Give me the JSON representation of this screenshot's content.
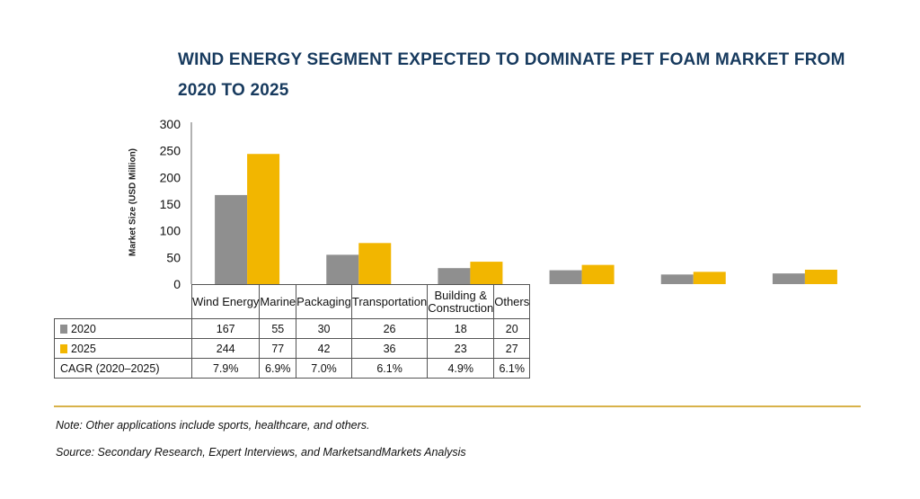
{
  "title": "WIND ENERGY SEGMENT EXPECTED TO DOMINATE PET FOAM MARKET FROM 2020 TO 2025",
  "colors": {
    "s2020": "#8f8f8f",
    "s2025": "#f2b600",
    "title": "#173a5e",
    "rule": "#d8b24a"
  },
  "chart_data": {
    "type": "bar",
    "ylabel": "Market Size (USD Million)",
    "ylim": [
      0,
      300
    ],
    "yticks": [
      0,
      50,
      100,
      150,
      200,
      250,
      300
    ],
    "ytick_labels": [
      "0",
      "50",
      "100",
      "150",
      "200",
      "250",
      "300"
    ],
    "categories": [
      "Wind Energy",
      "Marine",
      "Packaging",
      "Transportation",
      "Building & Construction",
      "Others"
    ],
    "series": [
      {
        "name": "2020",
        "values": [
          167,
          55,
          30,
          26,
          18,
          20
        ]
      },
      {
        "name": "2025",
        "values": [
          244,
          77,
          42,
          36,
          23,
          27
        ]
      }
    ],
    "grid": false,
    "legend": "table-rows"
  },
  "table": {
    "categories": [
      "Wind Energy",
      "Marine",
      "Packaging",
      "Transportation",
      "Building &",
      "Others"
    ],
    "category_line2": [
      "",
      "",
      "",
      "",
      "Construction",
      ""
    ],
    "rows": [
      {
        "label": "2020",
        "values": [
          "167",
          "55",
          "30",
          "26",
          "18",
          "20"
        ]
      },
      {
        "label": "2025",
        "values": [
          "244",
          "77",
          "42",
          "36",
          "23",
          "27"
        ]
      },
      {
        "label": "CAGR (2020–2025)",
        "values": [
          "7.9%",
          "6.9%",
          "7.0%",
          "6.1%",
          "4.9%",
          "6.1%"
        ]
      }
    ]
  },
  "note": "Note: Other applications include sports, healthcare, and others.",
  "source": "Source: Secondary Research, Expert Interviews, and MarketsandMarkets Analysis"
}
